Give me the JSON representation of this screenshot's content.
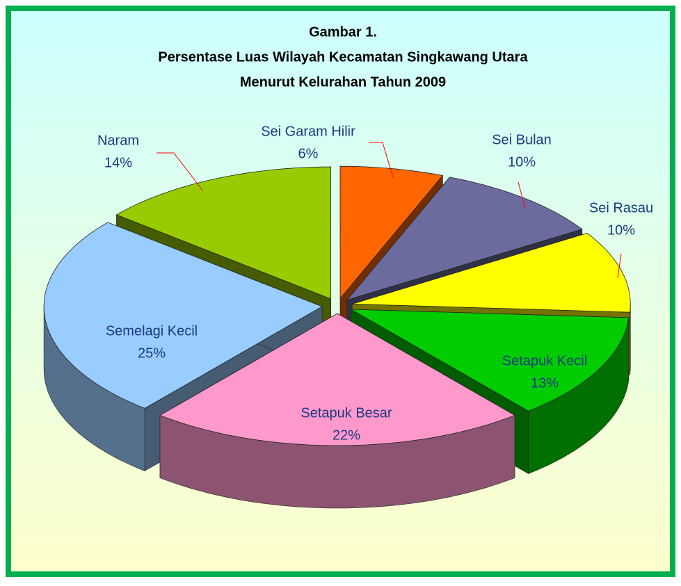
{
  "chart_data": {
    "type": "pie",
    "title": [
      "Gambar 1.",
      "Persentase  Luas Wilayah Kecamatan Singkawang Utara",
      "Menurut Kelurahan Tahun 2009"
    ],
    "categories": [
      "Sei Garam Hilir",
      "Sei Bulan",
      "Sei Rasau",
      "Setapuk Kecil",
      "Setapuk Besar",
      "Semelagi Kecil",
      "Naram"
    ],
    "values": [
      6,
      10,
      10,
      13,
      22,
      25,
      14
    ],
    "value_labels": [
      "6%",
      "10%",
      "10%",
      "13%",
      "22%",
      "25%",
      "14%"
    ],
    "colors": [
      "#ff6600",
      "#6b6b9e",
      "#ffff00",
      "#00cc00",
      "#ff99cc",
      "#99ccff",
      "#99cc00"
    ],
    "three_d": true,
    "exploded": true
  }
}
